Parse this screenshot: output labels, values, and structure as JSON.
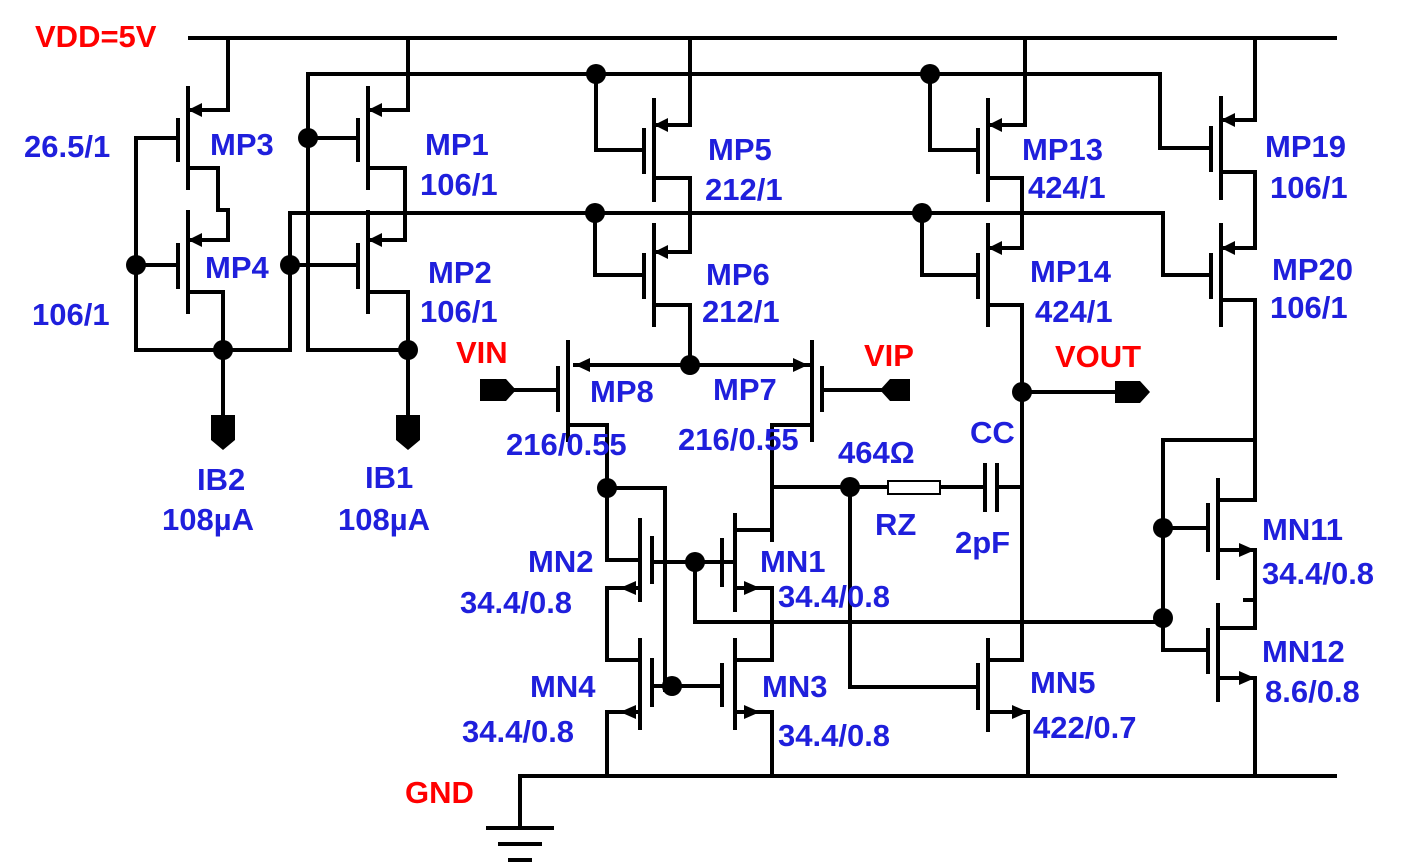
{
  "rails": {
    "vdd": "VDD=5V",
    "gnd": "GND"
  },
  "ports": {
    "vin": "VIN",
    "vip": "VIP",
    "vout": "VOUT",
    "ib2": "IB2",
    "ib2_value": "108µA",
    "ib1": "IB1",
    "ib1_value": "108µA"
  },
  "devices": {
    "mp3": {
      "name": "MP3",
      "size": "26.5/1"
    },
    "mp4": {
      "name": "MP4",
      "size": "106/1"
    },
    "mp1": {
      "name": "MP1",
      "size": "106/1"
    },
    "mp2": {
      "name": "MP2",
      "size": "106/1"
    },
    "mp5": {
      "name": "MP5",
      "size": "212/1"
    },
    "mp6": {
      "name": "MP6",
      "size": "212/1"
    },
    "mp13": {
      "name": "MP13",
      "size": "424/1"
    },
    "mp14": {
      "name": "MP14",
      "size": "424/1"
    },
    "mp19": {
      "name": "MP19",
      "size": "106/1"
    },
    "mp20": {
      "name": "MP20",
      "size": "106/1"
    },
    "mp8": {
      "name": "MP8",
      "size": "216/0.55"
    },
    "mp7": {
      "name": "MP7",
      "size": "216/0.55"
    },
    "mn2": {
      "name": "MN2",
      "size": "34.4/0.8"
    },
    "mn1": {
      "name": "MN1",
      "size": "34.4/0.8"
    },
    "mn4": {
      "name": "MN4",
      "size": "34.4/0.8"
    },
    "mn3": {
      "name": "MN3",
      "size": "34.4/0.8"
    },
    "mn5": {
      "name": "MN5",
      "size": "422/0.7"
    },
    "mn11": {
      "name": "MN11",
      "size": "34.4/0.8"
    },
    "mn12": {
      "name": "MN12",
      "size": "8.6/0.8"
    }
  },
  "passives": {
    "rz": {
      "name": "RZ",
      "value": "464Ω"
    },
    "cc": {
      "name": "CC",
      "value": "2pF"
    }
  },
  "colors": {
    "wire": "#000000",
    "device_label": "#1f1fdc",
    "net_label": "#ff0000"
  }
}
